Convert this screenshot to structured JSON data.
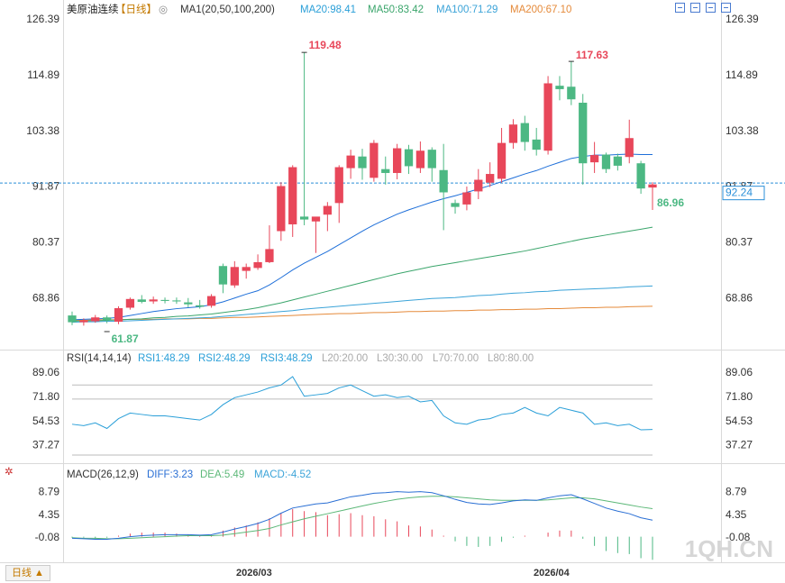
{
  "header": {
    "symbol": "美原油连续",
    "period_tag": "【日线】",
    "ma_label": "MA1(20,50,100,200)",
    "ma20": "MA20:98.41",
    "ma50": "MA50:83.42",
    "ma100": "MA100:71.29",
    "ma200": "MA200:67.10"
  },
  "rsi_header": {
    "label": "RSI(14,14,14)",
    "rsi1": "RSI1:48.29",
    "rsi2": "RSI2:48.29",
    "rsi3": "RSI3:48.29",
    "l20": "L20:20.00",
    "l30": "L30:30.00",
    "l70": "L70:70.00",
    "l80": "L80:80.00"
  },
  "macd_header": {
    "label": "MACD(26,12,9)",
    "diff": "DIFF:3.23",
    "dea": "DEA:5.49",
    "macd": "MACD:-4.52"
  },
  "footer": {
    "period_button": "日线 ▲",
    "watermark": "1QH.CN"
  },
  "colors": {
    "up": "#e8475a",
    "down": "#4cb883",
    "ma20": "#1e6fd9",
    "ma50": "#3aa56b",
    "ma100": "#3ba3d8",
    "ma200": "#e58a3a",
    "rsi": "#2a9fd8",
    "diff": "#2a6fd4",
    "dea": "#5cb878"
  },
  "chart_data": [
    {
      "type": "candlestick",
      "price_axis_ticks": [
        "126.39",
        "114.89",
        "103.38",
        "91.87",
        "80.37",
        "68.86"
      ],
      "ylim": [
        61.87,
        126.39
      ],
      "x_tick_labels": [
        "2026/03",
        "2026/04"
      ],
      "annotations": {
        "high": "119.48",
        "high2": "117.63",
        "low": "61.87",
        "last_ma": "86.96",
        "current_price": "92.24"
      },
      "candles": [
        [
          65.2,
          63.8,
          66.0,
          63.2
        ],
        [
          63.8,
          64.2,
          64.6,
          63.1
        ],
        [
          64.0,
          64.8,
          65.3,
          63.7
        ],
        [
          64.8,
          64.2,
          65.2,
          63.6
        ],
        [
          63.9,
          66.7,
          67.1,
          63.4
        ],
        [
          66.8,
          68.6,
          68.9,
          66.4
        ],
        [
          68.5,
          68.0,
          69.4,
          67.7
        ],
        [
          68.1,
          68.5,
          69.1,
          67.6
        ],
        [
          68.4,
          68.2,
          68.9,
          67.7
        ],
        [
          68.3,
          68.1,
          68.9,
          67.6
        ],
        [
          67.9,
          67.5,
          68.8,
          66.9
        ],
        [
          67.3,
          67.0,
          68.4,
          66.6
        ],
        [
          67.2,
          69.2,
          69.6,
          66.8
        ],
        [
          75.4,
          71.6,
          75.9,
          69.8
        ],
        [
          71.4,
          75.2,
          76.4,
          70.9
        ],
        [
          74.4,
          75.2,
          75.9,
          72.8
        ],
        [
          75.0,
          76.2,
          77.8,
          74.6
        ],
        [
          76.2,
          78.9,
          83.8,
          76.0
        ],
        [
          82.6,
          91.9,
          92.7,
          80.6
        ],
        [
          84.0,
          95.8,
          96.2,
          81.4
        ],
        [
          85.6,
          85.0,
          119.48,
          83.8
        ],
        [
          84.6,
          85.6,
          85.2,
          78.1
        ],
        [
          86.0,
          87.8,
          88.6,
          82.6
        ],
        [
          88.4,
          95.8,
          96.2,
          84.3
        ],
        [
          95.6,
          98.2,
          99.4,
          93.4
        ],
        [
          98.0,
          95.6,
          99.6,
          93.2
        ],
        [
          93.6,
          100.8,
          101.4,
          92.8
        ],
        [
          95.4,
          94.6,
          98.0,
          92.2
        ],
        [
          94.6,
          99.7,
          100.6,
          93.3
        ],
        [
          99.5,
          96.0,
          100.4,
          94.4
        ],
        [
          95.6,
          99.2,
          101.1,
          94.6
        ],
        [
          99.4,
          95.6,
          99.9,
          92.8
        ],
        [
          95.2,
          90.6,
          100.6,
          82.8
        ],
        [
          88.4,
          87.6,
          89.1,
          86.2
        ],
        [
          88.1,
          90.6,
          91.8,
          86.9
        ],
        [
          90.8,
          93.2,
          95.4,
          89.2
        ],
        [
          92.6,
          94.4,
          96.8,
          91.7
        ],
        [
          93.4,
          100.8,
          103.9,
          92.6
        ],
        [
          100.8,
          104.6,
          105.7,
          99.6
        ],
        [
          104.9,
          101.0,
          106.4,
          99.2
        ],
        [
          101.5,
          99.4,
          103.9,
          98.2
        ],
        [
          99.2,
          113.1,
          114.6,
          98.4
        ],
        [
          112.6,
          111.9,
          114.6,
          109.6
        ],
        [
          112.4,
          109.8,
          117.63,
          108.6
        ],
        [
          109.1,
          96.6,
          110.9,
          92.2
        ],
        [
          96.8,
          98.3,
          101.0,
          94.6
        ],
        [
          98.4,
          95.4,
          98.8,
          94.6
        ],
        [
          98.0,
          96.1,
          98.6,
          95.1
        ],
        [
          97.9,
          101.8,
          105.6,
          96.6
        ],
        [
          96.6,
          91.4,
          97.1,
          90.3
        ],
        [
          91.6,
          92.24,
          92.7,
          86.96
        ]
      ],
      "ma20": [
        64.3,
        64.4,
        64.5,
        64.6,
        64.8,
        65.2,
        65.6,
        66.0,
        66.3,
        66.6,
        66.8,
        67.0,
        67.4,
        68.0,
        68.8,
        69.6,
        70.3,
        71.5,
        73.0,
        74.6,
        76.0,
        77.2,
        78.4,
        79.8,
        81.2,
        82.6,
        83.9,
        85.0,
        86.1,
        87.0,
        87.8,
        88.6,
        89.3,
        89.9,
        90.6,
        91.3,
        92.0,
        92.8,
        93.6,
        94.4,
        95.1,
        96.0,
        96.8,
        97.6,
        98.0,
        98.3,
        98.3,
        98.4,
        98.5,
        98.4,
        98.41
      ],
      "ma50": [
        64.0,
        64.1,
        64.1,
        64.2,
        64.3,
        64.4,
        64.5,
        64.7,
        64.8,
        65.0,
        65.1,
        65.3,
        65.5,
        65.8,
        66.1,
        66.4,
        66.8,
        67.3,
        67.8,
        68.4,
        69.0,
        69.6,
        70.2,
        70.8,
        71.4,
        72.0,
        72.6,
        73.2,
        73.8,
        74.3,
        74.8,
        75.3,
        75.7,
        76.1,
        76.5,
        76.9,
        77.3,
        77.7,
        78.1,
        78.5,
        79.0,
        79.5,
        80.0,
        80.5,
        81.0,
        81.4,
        81.8,
        82.2,
        82.6,
        83.0,
        83.42
      ],
      "ma100": [
        63.8,
        63.9,
        63.9,
        64.0,
        64.0,
        64.1,
        64.2,
        64.3,
        64.4,
        64.5,
        64.6,
        64.7,
        64.8,
        65.0,
        65.2,
        65.4,
        65.6,
        65.8,
        66.0,
        66.2,
        66.5,
        66.7,
        66.9,
        67.1,
        67.3,
        67.5,
        67.7,
        67.9,
        68.1,
        68.3,
        68.5,
        68.7,
        68.8,
        68.9,
        69.1,
        69.3,
        69.4,
        69.6,
        69.8,
        69.9,
        70.1,
        70.2,
        70.4,
        70.5,
        70.6,
        70.7,
        70.8,
        70.9,
        71.1,
        71.2,
        71.29
      ],
      "ma200": [
        64.2,
        64.2,
        64.3,
        64.3,
        64.3,
        64.4,
        64.4,
        64.4,
        64.5,
        64.5,
        64.5,
        64.6,
        64.6,
        64.7,
        64.8,
        64.8,
        64.9,
        65.0,
        65.1,
        65.2,
        65.3,
        65.4,
        65.5,
        65.6,
        65.6,
        65.7,
        65.8,
        65.8,
        65.9,
        66.0,
        66.0,
        66.1,
        66.1,
        66.2,
        66.2,
        66.3,
        66.3,
        66.4,
        66.4,
        66.5,
        66.5,
        66.6,
        66.6,
        66.7,
        66.8,
        66.8,
        66.9,
        66.9,
        67.0,
        67.05,
        67.1
      ]
    },
    {
      "type": "line",
      "name": "RSI",
      "axis_ticks": [
        "89.06",
        "71.80",
        "54.53",
        "37.27"
      ],
      "ylim": [
        30,
        95
      ],
      "guide_lines": [
        80,
        70,
        30,
        20
      ],
      "values": [
        52,
        51,
        53,
        49,
        56,
        60,
        59,
        58,
        58,
        57,
        56,
        55,
        59,
        66,
        71,
        73,
        75,
        78,
        80,
        86,
        72,
        73,
        74,
        78,
        80,
        76,
        72,
        73,
        71,
        72,
        68,
        69,
        58,
        53,
        52,
        55,
        56,
        59,
        60,
        64,
        60,
        58,
        64,
        62,
        60,
        52,
        53,
        51,
        52,
        48,
        48.29
      ]
    },
    {
      "type": "bar",
      "name": "MACD",
      "axis_ticks": [
        "8.79",
        "4.35",
        "-0.08"
      ],
      "ylim": [
        -5.0,
        10.5
      ],
      "diff": [
        -0.3,
        -0.4,
        -0.5,
        -0.5,
        -0.3,
        0.0,
        0.2,
        0.3,
        0.4,
        0.4,
        0.4,
        0.3,
        0.4,
        0.9,
        1.5,
        2.0,
        2.6,
        3.4,
        4.6,
        5.6,
        6.0,
        6.4,
        6.6,
        7.2,
        7.8,
        8.1,
        8.5,
        8.6,
        8.8,
        8.7,
        8.8,
        8.6,
        8.0,
        7.3,
        6.7,
        6.4,
        6.3,
        6.6,
        7.0,
        7.2,
        7.1,
        7.6,
        8.0,
        8.2,
        7.4,
        6.5,
        5.6,
        5.0,
        4.5,
        3.7,
        3.23
      ],
      "dea": [
        -0.2,
        -0.3,
        -0.3,
        -0.4,
        -0.4,
        -0.3,
        -0.2,
        -0.1,
        0.0,
        0.1,
        0.2,
        0.2,
        0.2,
        0.3,
        0.6,
        0.9,
        1.2,
        1.6,
        2.3,
        2.9,
        3.5,
        4.0,
        4.5,
        5.0,
        5.5,
        6.0,
        6.5,
        6.9,
        7.3,
        7.6,
        7.8,
        7.9,
        7.9,
        7.8,
        7.6,
        7.4,
        7.2,
        7.1,
        7.1,
        7.1,
        7.1,
        7.2,
        7.4,
        7.6,
        7.6,
        7.4,
        7.0,
        6.6,
        6.2,
        5.8,
        5.49
      ],
      "macd": [
        -0.2,
        -0.2,
        -0.4,
        -0.2,
        0.2,
        0.6,
        0.8,
        0.8,
        0.8,
        0.6,
        0.4,
        0.2,
        0.4,
        1.2,
        1.8,
        2.2,
        2.8,
        3.6,
        4.6,
        5.4,
        5.0,
        4.8,
        4.2,
        4.4,
        4.6,
        4.2,
        4.0,
        3.4,
        3.0,
        2.2,
        2.0,
        1.4,
        0.2,
        -0.9,
        -1.8,
        -2.0,
        -1.8,
        -1.0,
        -0.2,
        0.2,
        0.0,
        0.8,
        1.2,
        1.2,
        -0.4,
        -1.8,
        -2.8,
        -3.2,
        -3.4,
        -4.2,
        -4.52
      ]
    }
  ]
}
